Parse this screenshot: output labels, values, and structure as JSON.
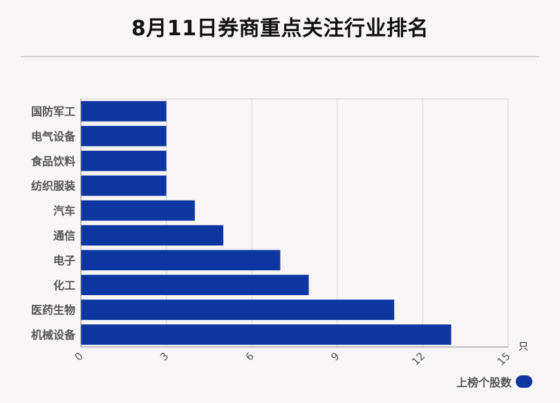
{
  "title": "8月11日券商重点关注行业排名",
  "chart_data": {
    "type": "bar",
    "orientation": "horizontal",
    "categories": [
      "国防军工",
      "电气设备",
      "食品饮料",
      "纺织服装",
      "汽车",
      "通信",
      "电子",
      "化工",
      "医药生物",
      "机械设备"
    ],
    "series": [
      {
        "name": "上榜个股数",
        "values": [
          3,
          3,
          3,
          3,
          4,
          5,
          7,
          8,
          11,
          13
        ],
        "color": "#0d36a0"
      }
    ],
    "xlim": [
      0,
      15
    ],
    "xticks": [
      "0",
      "3",
      "6",
      "9",
      "12",
      "15"
    ],
    "xunit": "只",
    "grid": true,
    "legend": "bottom-right"
  }
}
